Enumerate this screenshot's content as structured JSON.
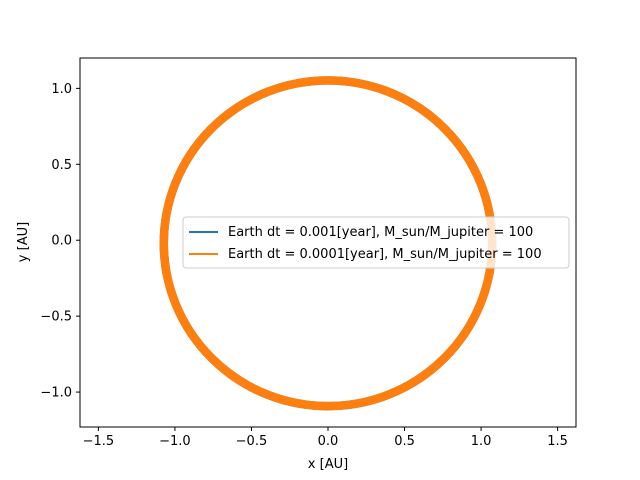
{
  "chart_data": {
    "type": "line",
    "title": "",
    "xlabel": "x [AU]",
    "ylabel": "y [AU]",
    "xlim": [
      -1.62,
      1.62
    ],
    "ylim": [
      -1.23,
      1.2
    ],
    "xticks": [
      -1.5,
      -1.0,
      -0.5,
      0.0,
      0.5,
      1.0,
      1.5
    ],
    "xtick_labels": [
      "−1.5",
      "−1.0",
      "−0.5",
      "0.0",
      "0.5",
      "1.0",
      "1.5"
    ],
    "yticks": [
      -1.0,
      -0.5,
      0.0,
      0.5,
      1.0
    ],
    "ytick_labels": [
      "−1.0",
      "−0.5",
      "0.0",
      "0.5",
      "1.0"
    ],
    "grid": false,
    "legend_position": "center-right",
    "series": [
      {
        "name": "Earth dt = 0.001[year], M_sun/M_jupiter = 100",
        "color": "#1f77b4",
        "shape": "orbit band",
        "center": [
          0.0,
          -0.02
        ],
        "radius_range": [
          1.045,
          1.1
        ]
      },
      {
        "name": "Earth dt = 0.0001[year], M_sun/M_jupiter = 100",
        "color": "#ff7f0e",
        "shape": "orbit band",
        "center": [
          0.0,
          -0.02
        ],
        "radius_range": [
          1.045,
          1.1
        ]
      }
    ]
  }
}
